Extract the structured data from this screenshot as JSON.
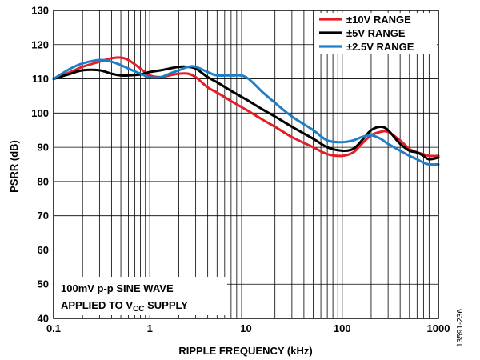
{
  "chart_data": {
    "type": "line",
    "xlabel": "RIPPLE FREQUENCY (kHz)",
    "ylabel": "PSRR (dB)",
    "xscale": "log",
    "xlim": [
      0.1,
      1000
    ],
    "ylim": [
      40,
      130
    ],
    "x_tick_labels": [
      "0.1",
      "1",
      "10",
      "100",
      "1000"
    ],
    "y_tick_labels": [
      "40",
      "50",
      "60",
      "70",
      "80",
      "90",
      "100",
      "110",
      "120",
      "130"
    ],
    "grid": true,
    "legend_position": "top-right",
    "annotation_lines": [
      "100mV p-p SINE WAVE",
      "APPLIED TO V",
      "CC",
      " SUPPLY"
    ],
    "figure_id": "13591-236",
    "series": [
      {
        "name": "±10V RANGE",
        "color": "#e41e26",
        "x": [
          0.1,
          0.15,
          0.2,
          0.3,
          0.4,
          0.5,
          0.6,
          0.8,
          1,
          1.3,
          1.6,
          2,
          2.5,
          3,
          4,
          5,
          7,
          10,
          15,
          20,
          30,
          50,
          70,
          100,
          130,
          160,
          200,
          250,
          300,
          400,
          500,
          600,
          700,
          800,
          1000
        ],
        "y": [
          110,
          112,
          113.5,
          115,
          116,
          116.2,
          115.5,
          113,
          111,
          110.5,
          111,
          111.5,
          111.5,
          110.5,
          107.5,
          106,
          103.5,
          101,
          98,
          96,
          93,
          90,
          88,
          87.5,
          88.5,
          91,
          93.5,
          94.5,
          94.5,
          92,
          89.5,
          88.5,
          88,
          87.5,
          87.5
        ]
      },
      {
        "name": "±5V RANGE",
        "color": "#000000",
        "x": [
          0.1,
          0.15,
          0.2,
          0.3,
          0.4,
          0.5,
          0.6,
          0.8,
          1,
          1.3,
          1.6,
          2,
          2.5,
          3,
          4,
          5,
          7,
          10,
          15,
          20,
          30,
          50,
          70,
          100,
          130,
          160,
          200,
          250,
          300,
          400,
          500,
          600,
          700,
          800,
          1000
        ],
        "y": [
          110,
          111.5,
          112.5,
          112.5,
          111.5,
          111,
          111,
          111.3,
          112,
          112.5,
          113,
          113.5,
          113.5,
          113,
          110.5,
          109,
          106.5,
          104,
          101,
          99,
          96,
          92.5,
          90,
          89,
          89.5,
          92,
          95,
          96,
          95,
          91,
          89,
          88.5,
          87.5,
          86.5,
          87
        ]
      },
      {
        "name": "±2.5V RANGE",
        "color": "#1f7fc6",
        "x": [
          0.1,
          0.15,
          0.2,
          0.3,
          0.4,
          0.5,
          0.6,
          0.8,
          1,
          1.3,
          1.6,
          2,
          2.5,
          3,
          4,
          5,
          7,
          10,
          15,
          20,
          30,
          50,
          70,
          100,
          130,
          160,
          200,
          250,
          300,
          400,
          500,
          600,
          700,
          800,
          1000
        ],
        "y": [
          110,
          113,
          114.5,
          115.5,
          115,
          114,
          113,
          111.5,
          110.5,
          110.5,
          111.5,
          112.5,
          113.5,
          113.5,
          112,
          111,
          111,
          110.5,
          106,
          103,
          99,
          95,
          92,
          91.5,
          92,
          93,
          93.5,
          92.5,
          91,
          89,
          87.5,
          86.5,
          85.5,
          85,
          85
        ]
      }
    ]
  }
}
